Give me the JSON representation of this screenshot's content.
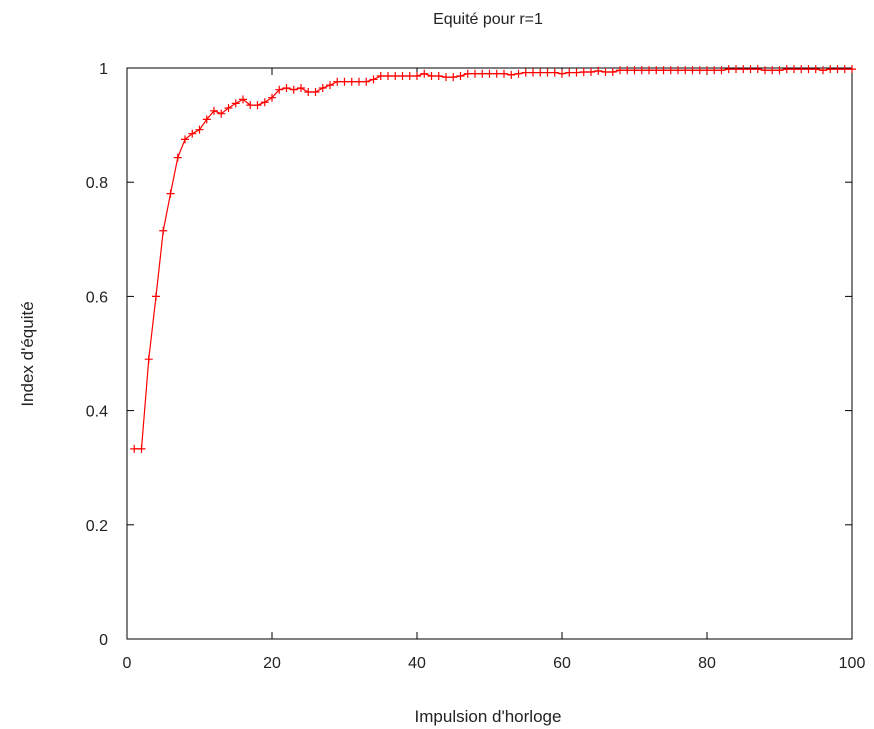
{
  "chart_data": {
    "type": "line",
    "title": "Equité pour r=1",
    "xlabel": "Impulsion d'horloge",
    "ylabel": "Index d'équité",
    "xlim": [
      0,
      100
    ],
    "ylim": [
      0,
      1
    ],
    "x_ticks": [
      "0",
      "20",
      "40",
      "60",
      "80",
      "100"
    ],
    "y_ticks": [
      "0",
      "0.2",
      "0.4",
      "0.6",
      "0.8",
      "1"
    ],
    "grid": false,
    "legend": "none",
    "marker": "plus",
    "color": "#ff0000",
    "series": [
      {
        "x": [
          1,
          2,
          3,
          4,
          5,
          6,
          7,
          8,
          9,
          10,
          11,
          12,
          13,
          14,
          15,
          16,
          17,
          18,
          19,
          20,
          21,
          22,
          23,
          24,
          25,
          26,
          27,
          28,
          29,
          30,
          31,
          32,
          33,
          34,
          35,
          36,
          37,
          38,
          39,
          40,
          41,
          42,
          43,
          44,
          45,
          46,
          47,
          48,
          49,
          50,
          51,
          52,
          53,
          54,
          55,
          56,
          57,
          58,
          59,
          60,
          61,
          62,
          63,
          64,
          65,
          66,
          67,
          68,
          69,
          70,
          71,
          72,
          73,
          74,
          75,
          76,
          77,
          78,
          79,
          80,
          81,
          82,
          83,
          84,
          85,
          86,
          87,
          88,
          89,
          90,
          91,
          92,
          93,
          94,
          95,
          96,
          97,
          98,
          99,
          100
        ],
        "values": [
          0.333,
          0.333,
          0.49,
          0.6,
          0.715,
          0.78,
          0.843,
          0.875,
          0.885,
          0.892,
          0.91,
          0.925,
          0.92,
          0.93,
          0.938,
          0.945,
          0.935,
          0.935,
          0.94,
          0.948,
          0.962,
          0.965,
          0.962,
          0.965,
          0.958,
          0.958,
          0.965,
          0.97,
          0.976,
          0.976,
          0.976,
          0.976,
          0.976,
          0.98,
          0.986,
          0.986,
          0.986,
          0.986,
          0.986,
          0.986,
          0.99,
          0.986,
          0.986,
          0.984,
          0.984,
          0.986,
          0.99,
          0.99,
          0.99,
          0.99,
          0.99,
          0.99,
          0.988,
          0.99,
          0.992,
          0.992,
          0.992,
          0.992,
          0.992,
          0.99,
          0.992,
          0.992,
          0.993,
          0.993,
          0.995,
          0.993,
          0.993,
          0.996,
          0.996,
          0.996,
          0.996,
          0.996,
          0.996,
          0.996,
          0.996,
          0.996,
          0.996,
          0.996,
          0.996,
          0.996,
          0.996,
          0.996,
          0.998,
          0.998,
          0.998,
          0.998,
          0.998,
          0.996,
          0.996,
          0.996,
          0.998,
          0.998,
          0.998,
          0.998,
          0.998,
          0.996,
          0.998,
          0.998,
          0.998,
          0.998
        ]
      }
    ]
  }
}
